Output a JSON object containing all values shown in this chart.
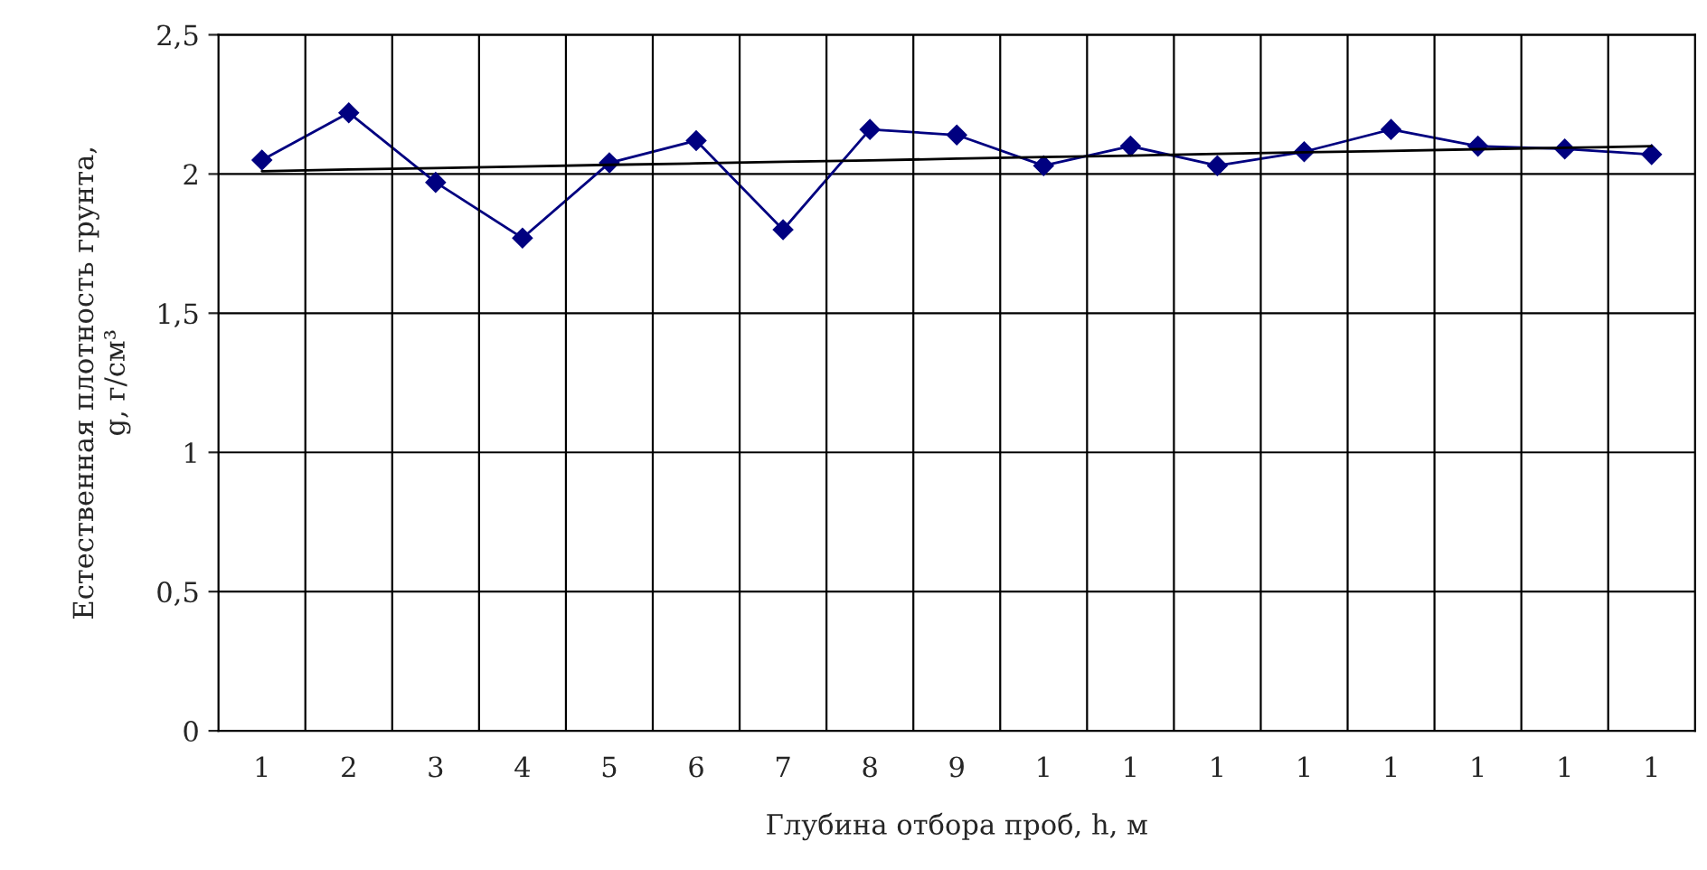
{
  "chart_data": {
    "type": "line",
    "xlabel": "Глубина отбора проб, h, м",
    "ylabel": "Естественная плотность грунта,\ng, г/см³",
    "categories": [
      "1",
      "2",
      "3",
      "4",
      "5",
      "6",
      "7",
      "8",
      "9",
      "1",
      "1",
      "1",
      "1",
      "1",
      "1",
      "1",
      "1"
    ],
    "series": [
      {
        "color": "#000080",
        "marker": "diamond",
        "values": [
          2.05,
          2.22,
          1.97,
          1.77,
          2.04,
          2.12,
          1.8,
          2.16,
          2.14,
          2.03,
          2.1,
          2.03,
          2.08,
          2.16,
          2.1,
          2.09,
          2.07
        ]
      },
      {
        "type": "line",
        "color": "#000000",
        "marker": "none",
        "values": [
          2.01,
          2.016,
          2.021,
          2.027,
          2.033,
          2.038,
          2.044,
          2.049,
          2.055,
          2.061,
          2.066,
          2.072,
          2.078,
          2.083,
          2.089,
          2.094,
          2.1
        ]
      }
    ],
    "ylim": [
      0,
      2.5
    ],
    "yticks": [
      0,
      {
        "value": 0.5,
        "label": "0,5"
      },
      1,
      {
        "value": 1.5,
        "label": "1,5"
      },
      2,
      {
        "value": 2.5,
        "label": "2,5"
      }
    ],
    "grid": true,
    "legend": false
  }
}
